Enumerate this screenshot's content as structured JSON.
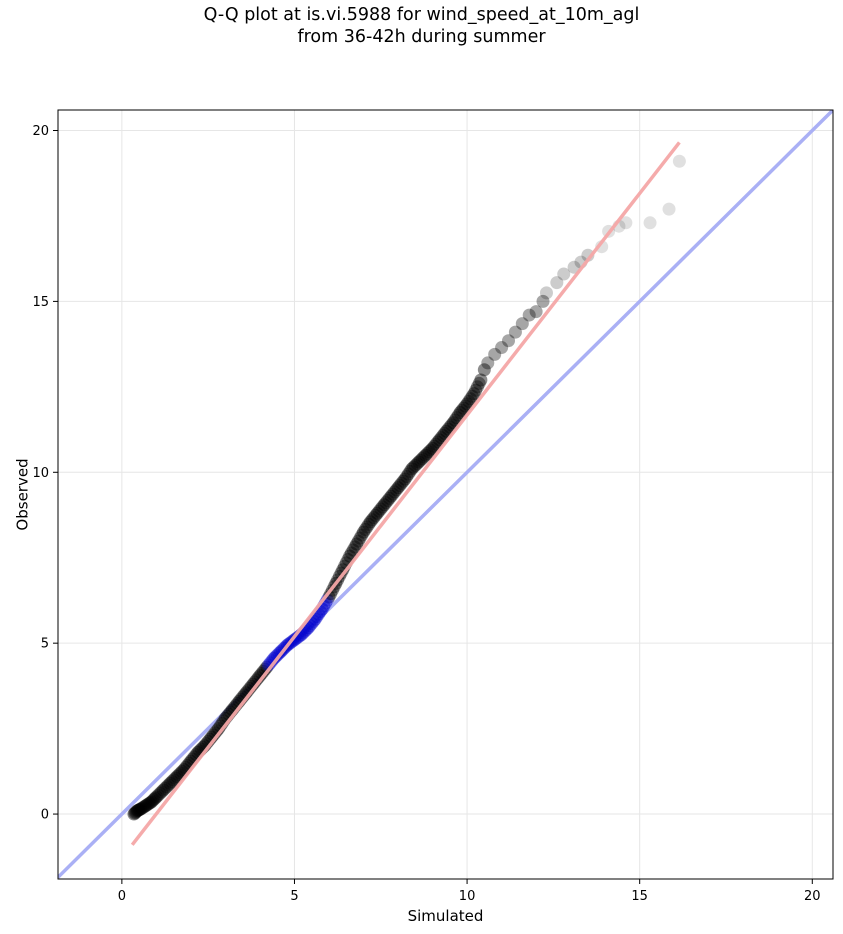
{
  "chart_data": {
    "type": "scatter",
    "title_lines": [
      "Q-Q plot at is.vi.5988 for wind_speed_at_10m_agl",
      "from 36-42h during summer"
    ],
    "xlabel": "Simulated",
    "ylabel": "Observed",
    "xlim": [
      -1.85,
      20.6
    ],
    "ylim": [
      -1.9,
      20.6
    ],
    "xticks": [
      0,
      5,
      10,
      15,
      20
    ],
    "yticks": [
      0,
      5,
      10,
      15,
      20
    ],
    "grid": true,
    "reference_line": {
      "name": "1:1 line",
      "color": "#aab0f5",
      "points": [
        [
          -1.85,
          -1.85
        ],
        [
          20.6,
          20.6
        ]
      ]
    },
    "fit_line": {
      "name": "fit line",
      "color": "#f4a6a6",
      "points": [
        [
          0.3,
          -0.9
        ],
        [
          16.15,
          19.65
        ]
      ]
    },
    "points_color": "#000000",
    "highlight_color": "#0000cc",
    "points": [
      [
        0.35,
        0.0
      ],
      [
        0.45,
        0.1
      ],
      [
        0.55,
        0.15
      ],
      [
        0.7,
        0.25
      ],
      [
        0.85,
        0.35
      ],
      [
        1.0,
        0.5
      ],
      [
        1.2,
        0.7
      ],
      [
        1.4,
        0.9
      ],
      [
        1.6,
        1.1
      ],
      [
        1.8,
        1.3
      ],
      [
        2.0,
        1.55
      ],
      [
        2.2,
        1.8
      ],
      [
        2.4,
        2.0
      ],
      [
        2.6,
        2.25
      ],
      [
        2.8,
        2.5
      ],
      [
        3.0,
        2.8
      ],
      [
        3.2,
        3.05
      ],
      [
        3.4,
        3.3
      ],
      [
        3.6,
        3.55
      ],
      [
        3.8,
        3.8
      ],
      [
        4.0,
        4.05
      ],
      [
        4.2,
        4.3
      ],
      [
        4.4,
        4.55
      ],
      [
        4.6,
        4.75
      ],
      [
        4.8,
        4.95
      ],
      [
        5.0,
        5.1
      ],
      [
        5.2,
        5.25
      ],
      [
        5.4,
        5.45
      ],
      [
        5.6,
        5.7
      ],
      [
        5.8,
        6.0
      ],
      [
        6.0,
        6.35
      ],
      [
        6.2,
        6.75
      ],
      [
        6.4,
        7.15
      ],
      [
        6.6,
        7.55
      ],
      [
        6.8,
        7.9
      ],
      [
        7.0,
        8.25
      ],
      [
        7.2,
        8.55
      ],
      [
        7.4,
        8.8
      ],
      [
        7.6,
        9.05
      ],
      [
        7.8,
        9.3
      ],
      [
        8.0,
        9.55
      ],
      [
        8.2,
        9.8
      ],
      [
        8.4,
        10.1
      ],
      [
        8.6,
        10.3
      ],
      [
        8.8,
        10.5
      ],
      [
        9.0,
        10.7
      ],
      [
        9.2,
        10.95
      ],
      [
        9.4,
        11.2
      ],
      [
        9.6,
        11.45
      ],
      [
        9.8,
        11.75
      ],
      [
        10.0,
        12.0
      ],
      [
        10.2,
        12.3
      ],
      [
        10.4,
        12.7
      ],
      [
        10.5,
        13.0
      ],
      [
        10.6,
        13.2
      ],
      [
        10.8,
        13.45
      ],
      [
        11.0,
        13.65
      ],
      [
        11.2,
        13.85
      ],
      [
        11.4,
        14.1
      ],
      [
        11.6,
        14.35
      ],
      [
        11.8,
        14.6
      ],
      [
        12.0,
        14.7
      ],
      [
        12.2,
        15.0
      ],
      [
        12.3,
        15.25
      ],
      [
        12.6,
        15.55
      ],
      [
        12.8,
        15.8
      ],
      [
        13.1,
        16.0
      ],
      [
        13.3,
        16.15
      ],
      [
        13.5,
        16.35
      ],
      [
        13.9,
        16.6
      ],
      [
        14.1,
        17.05
      ],
      [
        14.4,
        17.2
      ],
      [
        14.6,
        17.3
      ],
      [
        15.3,
        17.3
      ],
      [
        15.85,
        17.7
      ],
      [
        16.15,
        19.1
      ]
    ]
  }
}
